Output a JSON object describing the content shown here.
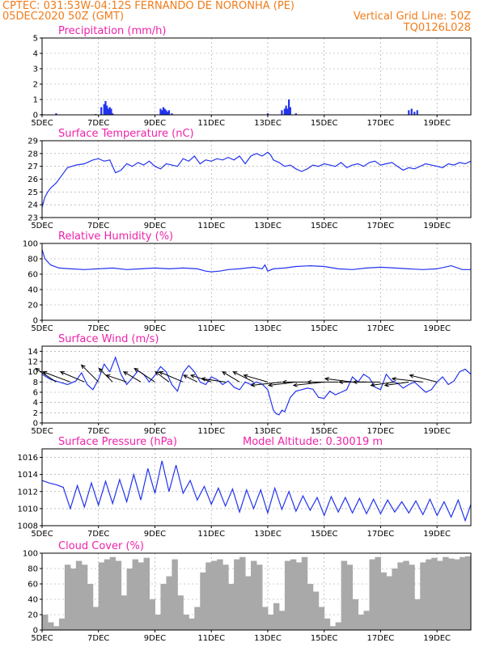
{
  "header": {
    "station": "CPTEC:   031:53W-04:12S   FERNANDO DE NORONHA (PE)",
    "run": "05DEC2020 50Z (GMT)",
    "grid_note": "Vertical Grid Line: 50Z",
    "model": "TQ0126L028"
  },
  "colors": {
    "header": "#f07c1a",
    "title": "#ee22aa",
    "series": "#2233ee",
    "cloud": "#a9a9a9",
    "grid": "#999999"
  },
  "chart_data": [
    {
      "type": "bar",
      "title": "Precipitation (mm/h)",
      "ylim": [
        0,
        5
      ],
      "yticks": [
        0,
        1,
        2,
        3,
        4,
        5
      ],
      "xlim": [
        0,
        15.2
      ],
      "xticks": [
        "5DEC",
        "7DEC",
        "9DEC",
        "11DEC",
        "13DEC",
        "15DEC",
        "17DEC",
        "19DEC"
      ],
      "x_tick_days": [
        0,
        2,
        4,
        6,
        8,
        10,
        12,
        14
      ],
      "x": [
        0.0,
        0.5,
        1.9,
        2.1,
        2.2,
        2.25,
        2.3,
        2.35,
        2.4,
        2.45,
        2.5,
        4.2,
        4.25,
        4.3,
        4.35,
        4.4,
        4.45,
        4.5,
        4.6,
        8.0,
        8.5,
        8.6,
        8.65,
        8.7,
        8.75,
        8.8,
        9.0,
        13.0,
        13.1,
        13.2,
        13.3
      ],
      "values": [
        0.05,
        0.1,
        0.05,
        0.5,
        0.7,
        0.9,
        0.6,
        0.4,
        0.5,
        0.4,
        0.1,
        0.4,
        0.3,
        0.5,
        0.4,
        0.3,
        0.2,
        0.3,
        0.1,
        0.1,
        0.3,
        0.4,
        0.6,
        0.4,
        1.0,
        0.5,
        0.1,
        0.3,
        0.4,
        0.2,
        0.3
      ]
    },
    {
      "type": "line",
      "title": "Surface Temperature (nC)",
      "ylim": [
        23,
        29
      ],
      "yticks": [
        23,
        24,
        25,
        26,
        27,
        28,
        29
      ],
      "xlim": [
        0,
        15.2
      ],
      "xticks": [
        "5DEC",
        "7DEC",
        "9DEC",
        "11DEC",
        "13DEC",
        "15DEC",
        "17DEC",
        "19DEC"
      ],
      "x_tick_days": [
        0,
        2,
        4,
        6,
        8,
        10,
        12,
        14
      ],
      "x": [
        0,
        0.1,
        0.2,
        0.3,
        0.5,
        0.7,
        0.9,
        1.2,
        1.5,
        1.8,
        2.0,
        2.2,
        2.4,
        2.6,
        2.8,
        3.0,
        3.2,
        3.4,
        3.6,
        3.8,
        4.0,
        4.2,
        4.4,
        4.6,
        4.8,
        5.0,
        5.2,
        5.4,
        5.6,
        5.8,
        6.0,
        6.2,
        6.4,
        6.6,
        6.8,
        7.0,
        7.2,
        7.4,
        7.6,
        7.8,
        8.0,
        8.1,
        8.2,
        8.4,
        8.6,
        8.8,
        9.0,
        9.2,
        9.4,
        9.6,
        9.8,
        10.0,
        10.2,
        10.4,
        10.6,
        10.8,
        11.0,
        11.2,
        11.4,
        11.6,
        11.8,
        12.0,
        12.2,
        12.4,
        12.6,
        12.8,
        13.0,
        13.2,
        13.4,
        13.6,
        13.8,
        14.0,
        14.2,
        14.4,
        14.6,
        14.8,
        15.0,
        15.2
      ],
      "values": [
        23.8,
        24.6,
        25.0,
        25.3,
        25.7,
        26.3,
        26.9,
        27.1,
        27.2,
        27.5,
        27.6,
        27.4,
        27.5,
        26.5,
        26.7,
        27.2,
        27.0,
        27.3,
        27.1,
        27.4,
        27.0,
        26.8,
        27.2,
        27.1,
        27.0,
        27.6,
        27.4,
        27.8,
        27.2,
        27.5,
        27.4,
        27.6,
        27.5,
        27.7,
        27.5,
        27.8,
        27.2,
        27.8,
        28.0,
        27.8,
        28.1,
        27.9,
        27.5,
        27.3,
        27.0,
        27.1,
        26.8,
        26.6,
        26.8,
        27.1,
        27.0,
        27.2,
        27.1,
        27.0,
        27.3,
        26.9,
        27.1,
        27.2,
        27.0,
        27.3,
        27.4,
        27.1,
        27.2,
        27.3,
        27.0,
        26.7,
        26.9,
        26.8,
        27.0,
        27.2,
        27.1,
        27.0,
        26.9,
        27.2,
        27.1,
        27.3,
        27.2,
        27.4
      ]
    },
    {
      "type": "line",
      "title": "Relative Humidity (%)",
      "ylim": [
        0,
        100
      ],
      "yticks": [
        0,
        20,
        40,
        60,
        80,
        100
      ],
      "xlim": [
        0,
        15.2
      ],
      "xticks": [
        "5DEC",
        "7DEC",
        "9DEC",
        "11DEC",
        "13DEC",
        "15DEC",
        "17DEC",
        "19DEC"
      ],
      "x_tick_days": [
        0,
        2,
        4,
        6,
        8,
        10,
        12,
        14
      ],
      "x": [
        0,
        0.1,
        0.3,
        0.6,
        1.0,
        1.5,
        2.0,
        2.5,
        3.0,
        3.5,
        4.0,
        4.5,
        5.0,
        5.5,
        5.8,
        6.0,
        6.3,
        6.6,
        7.0,
        7.5,
        7.8,
        7.9,
        8.0,
        8.2,
        8.6,
        9.0,
        9.5,
        10.0,
        10.5,
        11.0,
        11.5,
        12.0,
        12.5,
        13.0,
        13.5,
        14.0,
        14.5,
        14.9,
        15.2
      ],
      "values": [
        92,
        80,
        72,
        68,
        67,
        66,
        67,
        68,
        66,
        67,
        68,
        67,
        68,
        67,
        64,
        63,
        64,
        66,
        67,
        69,
        67,
        72,
        64,
        67,
        68,
        70,
        71,
        70,
        67,
        66,
        68,
        69,
        68,
        67,
        66,
        67,
        71,
        66,
        66
      ]
    },
    {
      "type": "line",
      "title": "Surface Wind (m/s)",
      "ylim": [
        0,
        15
      ],
      "yticks": [
        0,
        2,
        4,
        6,
        8,
        10,
        12,
        14
      ],
      "xlim": [
        0,
        15.2
      ],
      "xticks": [
        "5DEC",
        "7DEC",
        "9DEC",
        "11DEC",
        "13DEC",
        "15DEC",
        "17DEC",
        "19DEC"
      ],
      "x_tick_days": [
        0,
        2,
        4,
        6,
        8,
        10,
        12,
        14
      ],
      "x": [
        0,
        0.3,
        0.6,
        0.9,
        1.2,
        1.4,
        1.6,
        1.8,
        2.0,
        2.2,
        2.4,
        2.6,
        2.8,
        3.0,
        3.2,
        3.4,
        3.6,
        3.8,
        4.0,
        4.2,
        4.4,
        4.6,
        4.8,
        5.0,
        5.2,
        5.4,
        5.6,
        5.8,
        6.0,
        6.2,
        6.4,
        6.6,
        6.8,
        7.0,
        7.2,
        7.4,
        7.6,
        7.8,
        8.0,
        8.1,
        8.2,
        8.3,
        8.4,
        8.5,
        8.6,
        8.8,
        9.0,
        9.2,
        9.4,
        9.6,
        9.8,
        10.0,
        10.2,
        10.4,
        10.6,
        10.8,
        11.0,
        11.2,
        11.4,
        11.6,
        11.8,
        12.0,
        12.2,
        12.4,
        12.6,
        12.8,
        13.0,
        13.2,
        13.4,
        13.6,
        13.8,
        14.0,
        14.2,
        14.4,
        14.6,
        14.8,
        15.0,
        15.2
      ],
      "values": [
        9.5,
        8.5,
        8.0,
        7.5,
        8.2,
        9.8,
        7.5,
        6.5,
        8.5,
        11.5,
        10.0,
        12.8,
        9.5,
        7.5,
        8.8,
        10.2,
        9.5,
        8.0,
        9.3,
        11.0,
        10.0,
        7.5,
        6.2,
        9.8,
        11.2,
        10.0,
        8.0,
        7.5,
        9.0,
        8.5,
        7.5,
        8.2,
        7.0,
        6.5,
        8.0,
        7.5,
        8.0,
        7.6,
        6.5,
        4.5,
        2.5,
        1.8,
        1.6,
        2.5,
        2.2,
        5.0,
        6.2,
        6.5,
        6.8,
        6.6,
        5.0,
        4.8,
        6.2,
        5.5,
        6.0,
        6.5,
        9.0,
        8.0,
        9.5,
        8.8,
        7.0,
        6.5,
        9.5,
        8.2,
        7.8,
        6.8,
        7.5,
        8.0,
        7.0,
        6.0,
        6.5,
        8.0,
        9.0,
        7.5,
        8.2,
        10.0,
        10.5,
        9.5
      ],
      "wind_arrows": {
        "x": [
          0.5,
          1.0,
          1.5,
          2.0,
          2.5,
          3.0,
          3.5,
          4.0,
          4.5,
          5.0,
          5.5,
          6.0,
          6.5,
          7.0,
          7.5,
          8.0,
          8.5,
          9.0,
          9.5,
          10.0,
          10.5,
          11.0,
          11.5,
          12.0,
          12.5,
          13.0,
          13.5,
          14.0
        ],
        "u": [
          -6,
          -8,
          -7,
          -5,
          -4,
          -6,
          -5,
          -6,
          -4,
          -7,
          -4,
          -6,
          -7,
          -5,
          -6,
          -7,
          -9,
          -8,
          -8,
          -9,
          -9,
          -8,
          -8,
          -8,
          -7,
          -7,
          -9,
          -8
        ],
        "v": [
          4,
          3,
          3,
          5,
          4,
          2,
          3,
          4,
          3,
          3,
          2,
          2,
          1,
          3,
          3,
          2,
          -1,
          -1,
          0,
          -1,
          0,
          1,
          0,
          0,
          -1,
          -1,
          1,
          2
        ]
      }
    },
    {
      "type": "line",
      "title": "Surface Pressure (hPa)",
      "annotation": "Model Altitude: 0.30019  m",
      "ylim": [
        1008,
        1017
      ],
      "yticks": [
        1008,
        1010,
        1012,
        1014,
        1016
      ],
      "xlim": [
        0,
        15.2
      ],
      "xticks": [
        "5DEC",
        "7DEC",
        "9DEC",
        "11DEC",
        "13DEC",
        "15DEC",
        "17DEC",
        "19DEC"
      ],
      "x_tick_days": [
        0,
        2,
        4,
        6,
        8,
        10,
        12,
        14
      ],
      "x": [
        0,
        0.25,
        0.5,
        0.75,
        1.0,
        1.25,
        1.5,
        1.75,
        2.0,
        2.25,
        2.5,
        2.75,
        3.0,
        3.25,
        3.5,
        3.75,
        4.0,
        4.25,
        4.5,
        4.75,
        5.0,
        5.25,
        5.5,
        5.75,
        6.0,
        6.25,
        6.5,
        6.75,
        7.0,
        7.25,
        7.5,
        7.75,
        8.0,
        8.25,
        8.5,
        8.75,
        9.0,
        9.25,
        9.5,
        9.75,
        10.0,
        10.25,
        10.5,
        10.75,
        11.0,
        11.25,
        11.5,
        11.75,
        12.0,
        12.25,
        12.5,
        12.75,
        13.0,
        13.25,
        13.5,
        13.75,
        14.0,
        14.25,
        14.5,
        14.75,
        15.0,
        15.2
      ],
      "values": [
        1013.3,
        1013.0,
        1012.8,
        1012.5,
        1010.0,
        1012.7,
        1010.2,
        1013.0,
        1010.4,
        1013.2,
        1010.6,
        1013.4,
        1010.8,
        1014.0,
        1011.0,
        1014.7,
        1011.8,
        1015.6,
        1012.0,
        1015.1,
        1011.8,
        1013.3,
        1011.0,
        1012.6,
        1010.5,
        1012.4,
        1010.3,
        1012.3,
        1009.6,
        1012.2,
        1010.0,
        1012.2,
        1009.5,
        1012.4,
        1009.9,
        1012.0,
        1009.7,
        1011.5,
        1009.8,
        1011.3,
        1009.2,
        1011.4,
        1009.6,
        1011.3,
        1009.5,
        1011.2,
        1009.4,
        1011.1,
        1009.4,
        1011.0,
        1009.6,
        1010.8,
        1009.5,
        1010.9,
        1009.3,
        1011.1,
        1009.2,
        1010.8,
        1009.0,
        1011.0,
        1008.6,
        1010.5
      ]
    },
    {
      "type": "bar",
      "title": "Cloud Cover (%)",
      "ylim": [
        0,
        100
      ],
      "yticks": [
        0,
        20,
        40,
        60,
        80,
        100
      ],
      "xlim": [
        0,
        15.2
      ],
      "xticks": [
        "5DEC",
        "7DEC",
        "9DEC",
        "11DEC",
        "13DEC",
        "15DEC",
        "17DEC",
        "19DEC"
      ],
      "x_tick_days": [
        0,
        2,
        4,
        6,
        8,
        10,
        12,
        14
      ],
      "x": [
        0.0,
        0.2,
        0.4,
        0.6,
        0.8,
        1.0,
        1.2,
        1.4,
        1.6,
        1.8,
        2.0,
        2.2,
        2.4,
        2.6,
        2.8,
        3.0,
        3.2,
        3.4,
        3.6,
        3.8,
        4.0,
        4.2,
        4.4,
        4.6,
        4.8,
        5.0,
        5.2,
        5.4,
        5.6,
        5.8,
        6.0,
        6.2,
        6.4,
        6.6,
        6.8,
        7.0,
        7.2,
        7.4,
        7.6,
        7.8,
        8.0,
        8.2,
        8.4,
        8.6,
        8.8,
        9.0,
        9.2,
        9.4,
        9.6,
        9.8,
        10.0,
        10.2,
        10.4,
        10.6,
        10.8,
        11.0,
        11.2,
        11.4,
        11.6,
        11.8,
        12.0,
        12.2,
        12.4,
        12.6,
        12.8,
        13.0,
        13.2,
        13.4,
        13.6,
        13.8,
        14.0,
        14.2,
        14.4,
        14.6,
        14.8,
        15.0
      ],
      "values": [
        20,
        10,
        5,
        15,
        85,
        80,
        90,
        85,
        60,
        30,
        88,
        92,
        95,
        90,
        45,
        80,
        92,
        88,
        94,
        40,
        20,
        60,
        70,
        92,
        45,
        20,
        15,
        30,
        75,
        88,
        90,
        92,
        85,
        60,
        92,
        95,
        70,
        90,
        85,
        30,
        20,
        35,
        25,
        90,
        92,
        88,
        95,
        60,
        50,
        30,
        15,
        5,
        10,
        90,
        85,
        40,
        20,
        25,
        92,
        95,
        75,
        70,
        80,
        88,
        90,
        85,
        40,
        88,
        92,
        94,
        90,
        95,
        93,
        92,
        95,
        96
      ]
    }
  ]
}
